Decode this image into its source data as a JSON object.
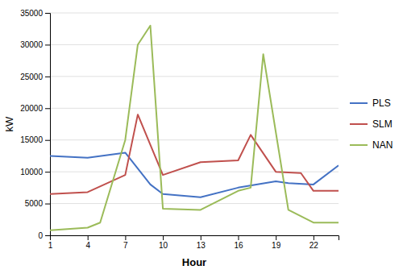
{
  "chart_data": {
    "type": "line",
    "xlabel": "Hour",
    "ylabel": "kW",
    "series": [
      {
        "name": "PLS",
        "color": "#4472c4",
        "x": [
          1,
          4,
          7,
          9,
          10,
          13,
          16,
          19,
          20,
          22,
          24
        ],
        "values": [
          12500,
          12200,
          13000,
          8000,
          6500,
          6000,
          7500,
          8500,
          8200,
          8000,
          11000
        ]
      },
      {
        "name": "SLM",
        "color": "#c0504d",
        "x": [
          1,
          4,
          7,
          8,
          10,
          13,
          16,
          17,
          19,
          21,
          22,
          24
        ],
        "values": [
          6500,
          6800,
          9500,
          19000,
          9500,
          11500,
          11800,
          15800,
          10000,
          9800,
          7000,
          7000
        ]
      },
      {
        "name": "NAN",
        "color": "#9bbb59",
        "x": [
          1,
          4,
          5,
          7,
          8,
          9,
          10,
          13,
          16,
          17,
          18,
          20,
          22,
          24
        ],
        "values": [
          800,
          1200,
          2000,
          15000,
          30000,
          33000,
          4200,
          4000,
          7000,
          7500,
          28500,
          4000,
          2000,
          2000
        ]
      }
    ],
    "xlim": [
      1,
      24
    ],
    "xticks": [
      1,
      4,
      7,
      10,
      13,
      16,
      19,
      22
    ],
    "ylim": [
      0,
      35000
    ],
    "yticks": [
      0,
      5000,
      10000,
      15000,
      20000,
      25000,
      30000,
      35000
    ],
    "grid": true,
    "legend": "right"
  }
}
